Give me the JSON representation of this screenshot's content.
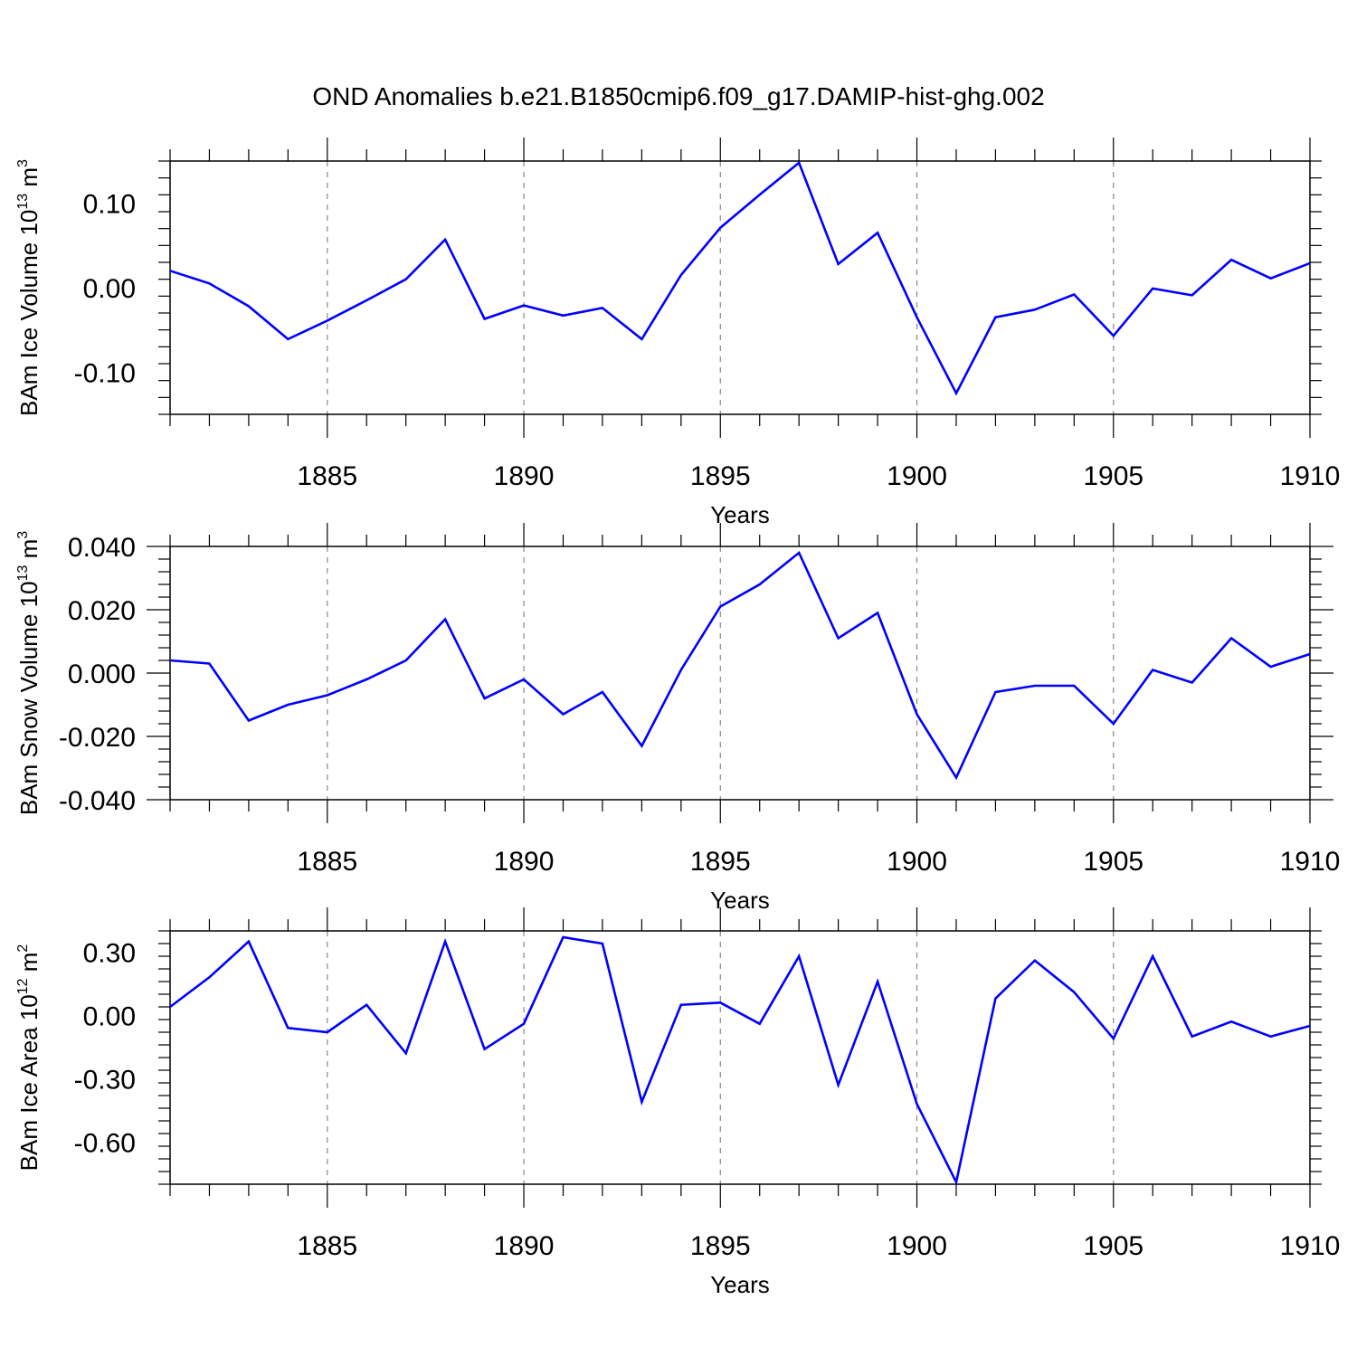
{
  "title": "OND Anomalies b.e21.B1850cmip6.f09_g17.DAMIP-hist-ghg.002",
  "chart_data": [
    {
      "type": "line",
      "ylabel": "BAm Ice Volume 10",
      "ylabel_exp": "13",
      "ylabel_unit": " m",
      "ylabel_unit_exp": "3",
      "xlabel": "Years",
      "xlim": [
        1881,
        1910
      ],
      "ylim": [
        -0.15,
        0.15
      ],
      "yticks": [
        -0.1,
        0.0,
        0.1
      ],
      "ytick_labels": [
        "-0.10",
        "0.00",
        "0.10"
      ],
      "xticks": [
        1885,
        1890,
        1895,
        1900,
        1905,
        1910
      ],
      "xtick_labels": [
        "1885",
        "1890",
        "1895",
        "1900",
        "1905",
        "1910"
      ],
      "grid": "dashed vertical at major x ticks",
      "line_color": "#0000ff",
      "x": [
        1881,
        1882,
        1883,
        1884,
        1885,
        1886,
        1887,
        1888,
        1889,
        1890,
        1891,
        1892,
        1893,
        1894,
        1895,
        1896,
        1897,
        1898,
        1899,
        1900,
        1901,
        1902,
        1903,
        1904,
        1905,
        1906,
        1907,
        1908,
        1909,
        1910
      ],
      "values": [
        0.02,
        0.005,
        -0.022,
        -0.061,
        -0.039,
        -0.015,
        0.01,
        0.057,
        -0.037,
        -0.021,
        -0.033,
        -0.024,
        -0.061,
        0.015,
        0.071,
        0.11,
        0.148,
        0.028,
        0.065,
        -0.035,
        -0.125,
        -0.035,
        -0.026,
        -0.008,
        -0.057,
        -0.001,
        -0.009,
        0.033,
        0.011,
        0.029
      ]
    },
    {
      "type": "line",
      "ylabel": "BAm Snow Volume 10",
      "ylabel_exp": "13",
      "ylabel_unit": " m",
      "ylabel_unit_exp": "3",
      "xlabel": "Years",
      "xlim": [
        1881,
        1910
      ],
      "ylim": [
        -0.04,
        0.04
      ],
      "yticks": [
        -0.04,
        -0.02,
        0.0,
        0.02,
        0.04
      ],
      "ytick_labels": [
        "-0.040",
        "-0.020",
        "0.000",
        "0.020",
        "0.040"
      ],
      "xticks": [
        1885,
        1890,
        1895,
        1900,
        1905,
        1910
      ],
      "xtick_labels": [
        "1885",
        "1890",
        "1895",
        "1900",
        "1905",
        "1910"
      ],
      "grid": "dashed vertical at major x ticks",
      "line_color": "#0000ff",
      "x": [
        1881,
        1882,
        1883,
        1884,
        1885,
        1886,
        1887,
        1888,
        1889,
        1890,
        1891,
        1892,
        1893,
        1894,
        1895,
        1896,
        1897,
        1898,
        1899,
        1900,
        1901,
        1902,
        1903,
        1904,
        1905,
        1906,
        1907,
        1908,
        1909,
        1910
      ],
      "values": [
        0.004,
        0.003,
        -0.015,
        -0.01,
        -0.007,
        -0.002,
        0.004,
        0.017,
        -0.008,
        -0.002,
        -0.013,
        -0.006,
        -0.023,
        0.001,
        0.021,
        0.028,
        0.038,
        0.011,
        0.019,
        -0.013,
        -0.033,
        -0.006,
        -0.004,
        -0.004,
        -0.016,
        0.001,
        -0.003,
        0.011,
        0.002,
        0.006
      ]
    },
    {
      "type": "line",
      "ylabel": "BAm Ice Area 10",
      "ylabel_exp": "12",
      "ylabel_unit": " m",
      "ylabel_unit_exp": "2",
      "xlabel": "Years",
      "xlim": [
        1881,
        1910
      ],
      "ylim": [
        -0.8,
        0.4
      ],
      "yticks": [
        -0.6,
        -0.3,
        0.0,
        0.3
      ],
      "ytick_labels": [
        "-0.60",
        "-0.30",
        "0.00",
        "0.30"
      ],
      "xticks": [
        1885,
        1890,
        1895,
        1900,
        1905,
        1910
      ],
      "xtick_labels": [
        "1885",
        "1890",
        "1895",
        "1900",
        "1905",
        "1910"
      ],
      "grid": "dashed vertical at major x ticks",
      "line_color": "#0000ff",
      "x": [
        1881,
        1882,
        1883,
        1884,
        1885,
        1886,
        1887,
        1888,
        1889,
        1890,
        1891,
        1892,
        1893,
        1894,
        1895,
        1896,
        1897,
        1898,
        1899,
        1900,
        1901,
        1902,
        1903,
        1904,
        1905,
        1906,
        1907,
        1908,
        1909,
        1910
      ],
      "values": [
        0.04,
        0.18,
        0.35,
        -0.06,
        -0.08,
        0.05,
        -0.18,
        0.35,
        -0.16,
        -0.04,
        0.37,
        0.34,
        -0.41,
        0.05,
        0.06,
        -0.04,
        0.28,
        -0.33,
        0.16,
        -0.42,
        -0.79,
        0.08,
        0.26,
        0.11,
        -0.11,
        0.28,
        -0.1,
        -0.03,
        -0.1,
        -0.05
      ]
    }
  ]
}
